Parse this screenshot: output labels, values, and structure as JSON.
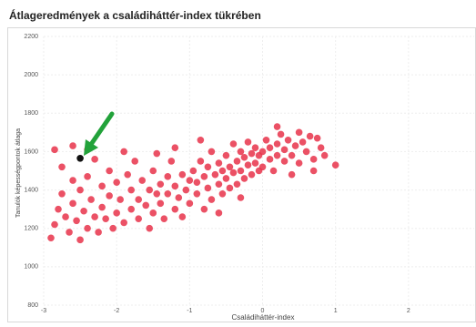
{
  "chart_data": {
    "type": "scatter",
    "title": "Átlageredmények a családiháttér-index tükrében",
    "x_label": "Családiháttér-index",
    "y_label": "Tanulók képességpontok átlaga",
    "color": "#e8334a",
    "grid": true,
    "xlim": [
      -3,
      2.9
    ],
    "ylim": [
      800,
      2200
    ],
    "xticks": [
      -3,
      -2,
      -1,
      0,
      1,
      2
    ],
    "yticks": [
      800,
      1000,
      1200,
      1400,
      1600,
      1800,
      2000,
      2200
    ],
    "x": [
      -2.9,
      -2.85,
      -2.8,
      -2.75,
      -2.7,
      -2.65,
      -2.6,
      -2.6,
      -2.55,
      -2.5,
      -2.5,
      -2.45,
      -2.4,
      -2.4,
      -2.35,
      -2.3,
      -2.3,
      -2.25,
      -2.2,
      -2.2,
      -2.15,
      -2.1,
      -2.1,
      -2.05,
      -2.0,
      -2.0,
      -2.85,
      -2.6,
      -2.75,
      -2.4,
      -1.95,
      -1.9,
      -1.85,
      -1.8,
      -1.8,
      -1.75,
      -1.7,
      -1.7,
      -1.65,
      -1.6,
      -1.55,
      -1.55,
      -1.5,
      -1.5,
      -1.45,
      -1.4,
      -1.4,
      -1.35,
      -1.3,
      -1.3,
      -1.25,
      -1.2,
      -1.2,
      -1.15,
      -1.1,
      -1.1,
      -1.05,
      -1.0,
      -1.0,
      -1.45,
      -1.2,
      -1.9,
      -0.95,
      -0.9,
      -0.9,
      -0.85,
      -0.8,
      -0.8,
      -0.75,
      -0.75,
      -0.7,
      -0.7,
      -0.65,
      -0.6,
      -0.6,
      -0.55,
      -0.55,
      -0.5,
      -0.5,
      -0.45,
      -0.45,
      -0.4,
      -0.4,
      -0.35,
      -0.35,
      -0.3,
      -0.3,
      -0.25,
      -0.25,
      -0.2,
      -0.2,
      -0.15,
      -0.15,
      -0.1,
      -0.1,
      -0.05,
      -0.05,
      -0.6,
      -0.3,
      -0.85,
      0.0,
      0.0,
      0.05,
      0.1,
      0.1,
      0.15,
      0.2,
      0.2,
      0.25,
      0.3,
      0.3,
      0.35,
      0.4,
      0.45,
      0.5,
      0.5,
      0.55,
      0.6,
      0.65,
      0.7,
      0.75,
      0.8,
      0.85,
      0.7,
      1.0,
      0.2,
      0.4
    ],
    "y": [
      1150,
      1220,
      1300,
      1380,
      1260,
      1180,
      1450,
      1330,
      1240,
      1140,
      1400,
      1290,
      1200,
      1470,
      1350,
      1260,
      1560,
      1180,
      1420,
      1310,
      1250,
      1500,
      1370,
      1200,
      1280,
      1440,
      1610,
      1630,
      1520,
      1610,
      1350,
      1230,
      1480,
      1300,
      1400,
      1550,
      1250,
      1350,
      1450,
      1320,
      1200,
      1400,
      1500,
      1280,
      1380,
      1430,
      1330,
      1250,
      1470,
      1380,
      1550,
      1300,
      1420,
      1360,
      1480,
      1260,
      1400,
      1330,
      1450,
      1590,
      1620,
      1600,
      1500,
      1380,
      1440,
      1550,
      1300,
      1470,
      1410,
      1520,
      1600,
      1350,
      1480,
      1430,
      1540,
      1380,
      1500,
      1580,
      1460,
      1410,
      1520,
      1640,
      1490,
      1550,
      1430,
      1600,
      1500,
      1460,
      1570,
      1530,
      1650,
      1480,
      1590,
      1540,
      1620,
      1500,
      1580,
      1280,
      1360,
      1660,
      1600,
      1520,
      1660,
      1560,
      1620,
      1500,
      1640,
      1580,
      1690,
      1550,
      1610,
      1660,
      1580,
      1630,
      1700,
      1540,
      1650,
      1600,
      1680,
      1560,
      1670,
      1620,
      1580,
      1500,
      1530,
      1730,
      1480
    ],
    "highlight": {
      "x": -2.5,
      "y": 1565,
      "color": "#111111"
    }
  }
}
